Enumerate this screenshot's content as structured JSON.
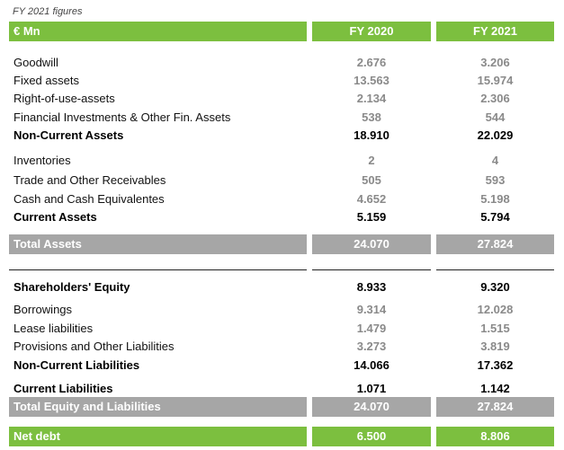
{
  "caption": "FY 2021 figures",
  "header": {
    "unit": "€ Mn",
    "col1": "FY 2020",
    "col2": "FY 2021"
  },
  "assets": [
    {
      "label": "Goodwill",
      "fy2020": "2.676",
      "fy2021": "3.206",
      "bold": false
    },
    {
      "label": "Fixed assets",
      "fy2020": "13.563",
      "fy2021": "15.974",
      "bold": false
    },
    {
      "label": "Right-of-use-assets",
      "fy2020": "2.134",
      "fy2021": "2.306",
      "bold": false
    },
    {
      "label": "Financial Investments & Other Fin. Assets",
      "fy2020": "538",
      "fy2021": "544",
      "bold": false
    },
    {
      "label": "Non-Current Assets",
      "fy2020": "18.910",
      "fy2021": "22.029",
      "bold": true
    },
    {
      "label": "Inventories",
      "fy2020": "2",
      "fy2021": "4",
      "bold": false
    },
    {
      "label": "Trade and Other Receivables",
      "fy2020": "505",
      "fy2021": "593",
      "bold": false
    },
    {
      "label": "Cash and Cash Equivalentes",
      "fy2020": "4.652",
      "fy2021": "5.198",
      "bold": false
    },
    {
      "label": "Current Assets",
      "fy2020": "5.159",
      "fy2021": "5.794",
      "bold": true
    }
  ],
  "total_assets": {
    "label": "Total Assets",
    "fy2020": "24.070",
    "fy2021": "27.824"
  },
  "liabilities": [
    {
      "label": "Shareholders' Equity",
      "fy2020": "8.933",
      "fy2021": "9.320",
      "bold": true
    },
    {
      "label": "Borrowings",
      "fy2020": "9.314",
      "fy2021": "12.028",
      "bold": false
    },
    {
      "label": "Lease liabilities",
      "fy2020": "1.479",
      "fy2021": "1.515",
      "bold": false
    },
    {
      "label": "Provisions and Other Liabilities",
      "fy2020": "3.273",
      "fy2021": "3.819",
      "bold": false
    },
    {
      "label": "Non-Current Liabilities",
      "fy2020": "14.066",
      "fy2021": "17.362",
      "bold": true
    },
    {
      "label": "Current Liabilities",
      "fy2020": "1.071",
      "fy2021": "1.142",
      "bold": true
    }
  ],
  "total_equity_liabilities": {
    "label": "Total Equity and Liabilities",
    "fy2020": "24.070",
    "fy2021": "27.824"
  },
  "net_debt": {
    "label": "Net debt",
    "fy2020": "6.500",
    "fy2021": "8.806"
  }
}
